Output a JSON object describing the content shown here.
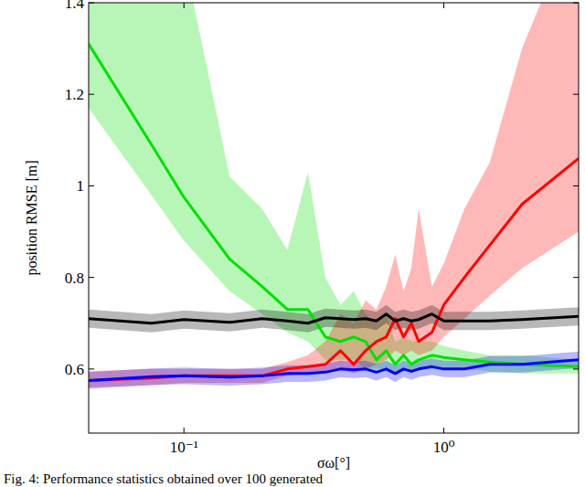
{
  "chart_data": {
    "type": "line",
    "caption": "Fig. 4:  Performance statistics obtained over 100 generated",
    "xlabel": "σω[°]",
    "ylabel": "position RMSE [m]",
    "log": "x",
    "grid": false,
    "xlim": [
      0.043,
      3.3
    ],
    "ylim": [
      0.46,
      1.4
    ],
    "xticks": [
      {
        "value": 0.1,
        "label": "10⁻¹"
      },
      {
        "value": 1,
        "label": "10⁰"
      }
    ],
    "yticks": [
      0.6,
      0.8,
      1,
      1.2,
      1.4
    ],
    "x": [
      0.043,
      0.075,
      0.1,
      0.15,
      0.2,
      0.25,
      0.3,
      0.35,
      0.4,
      0.45,
      0.5,
      0.55,
      0.6,
      0.65,
      0.7,
      0.75,
      0.8,
      0.9,
      1.0,
      1.2,
      1.5,
      2.0,
      3.3
    ],
    "series": [
      {
        "color": "#00e000",
        "values": [
          1.31,
          1.09,
          0.975,
          0.84,
          0.78,
          0.73,
          0.73,
          0.67,
          0.66,
          0.67,
          0.66,
          0.62,
          0.64,
          0.61,
          0.63,
          0.61,
          0.62,
          0.63,
          0.625,
          0.62,
          0.615,
          0.61,
          0.605
        ],
        "lower": [
          1.17,
          0.98,
          0.88,
          0.77,
          0.72,
          0.68,
          0.66,
          0.62,
          0.62,
          0.62,
          0.6,
          0.6,
          0.6,
          0.59,
          0.6,
          0.59,
          0.6,
          0.6,
          0.6,
          0.6,
          0.595,
          0.59,
          0.59
        ],
        "upper": [
          1.6,
          1.6,
          1.5,
          1.02,
          0.95,
          0.86,
          1.03,
          0.8,
          0.74,
          0.77,
          0.72,
          0.7,
          0.72,
          0.66,
          0.67,
          0.66,
          0.66,
          0.66,
          0.65,
          0.64,
          0.63,
          0.63,
          0.62
        ]
      },
      {
        "color": "#ff0000",
        "values": [
          0.575,
          0.58,
          0.585,
          0.585,
          0.585,
          0.6,
          0.605,
          0.61,
          0.64,
          0.61,
          0.64,
          0.66,
          0.67,
          0.71,
          0.67,
          0.7,
          0.66,
          0.68,
          0.74,
          0.8,
          0.87,
          0.96,
          1.06
        ],
        "lower": [
          0.56,
          0.565,
          0.57,
          0.57,
          0.57,
          0.585,
          0.59,
          0.59,
          0.6,
          0.59,
          0.6,
          0.61,
          0.62,
          0.64,
          0.63,
          0.64,
          0.63,
          0.64,
          0.67,
          0.71,
          0.76,
          0.82,
          0.9
        ],
        "upper": [
          0.595,
          0.6,
          0.6,
          0.6,
          0.6,
          0.615,
          0.63,
          0.66,
          0.72,
          0.7,
          0.75,
          0.73,
          0.78,
          0.85,
          0.77,
          0.82,
          0.95,
          0.78,
          0.83,
          0.95,
          1.05,
          1.3,
          1.6
        ]
      },
      {
        "color": "#000000",
        "values": [
          0.71,
          0.7,
          0.708,
          0.702,
          0.71,
          0.705,
          0.7,
          0.712,
          0.71,
          0.708,
          0.71,
          0.705,
          0.72,
          0.705,
          0.71,
          0.705,
          0.708,
          0.72,
          0.705,
          0.705,
          0.705,
          0.708,
          0.715
        ],
        "lower": [
          0.69,
          0.68,
          0.688,
          0.682,
          0.69,
          0.685,
          0.68,
          0.692,
          0.69,
          0.688,
          0.69,
          0.685,
          0.7,
          0.685,
          0.69,
          0.685,
          0.688,
          0.7,
          0.685,
          0.685,
          0.685,
          0.688,
          0.695
        ],
        "upper": [
          0.73,
          0.72,
          0.728,
          0.722,
          0.73,
          0.725,
          0.72,
          0.732,
          0.73,
          0.728,
          0.73,
          0.725,
          0.74,
          0.725,
          0.73,
          0.725,
          0.728,
          0.74,
          0.725,
          0.725,
          0.725,
          0.728,
          0.735
        ]
      },
      {
        "color": "#0000ff",
        "values": [
          0.575,
          0.583,
          0.585,
          0.582,
          0.585,
          0.59,
          0.59,
          0.593,
          0.6,
          0.598,
          0.6,
          0.593,
          0.6,
          0.59,
          0.6,
          0.595,
          0.6,
          0.605,
          0.6,
          0.6,
          0.61,
          0.61,
          0.62
        ],
        "lower": [
          0.557,
          0.565,
          0.567,
          0.564,
          0.567,
          0.572,
          0.572,
          0.575,
          0.582,
          0.58,
          0.582,
          0.575,
          0.582,
          0.572,
          0.582,
          0.577,
          0.582,
          0.587,
          0.582,
          0.582,
          0.592,
          0.592,
          0.602
        ],
        "upper": [
          0.593,
          0.601,
          0.603,
          0.6,
          0.603,
          0.608,
          0.608,
          0.611,
          0.618,
          0.616,
          0.618,
          0.611,
          0.618,
          0.608,
          0.618,
          0.613,
          0.618,
          0.623,
          0.618,
          0.618,
          0.628,
          0.628,
          0.638
        ]
      }
    ]
  }
}
